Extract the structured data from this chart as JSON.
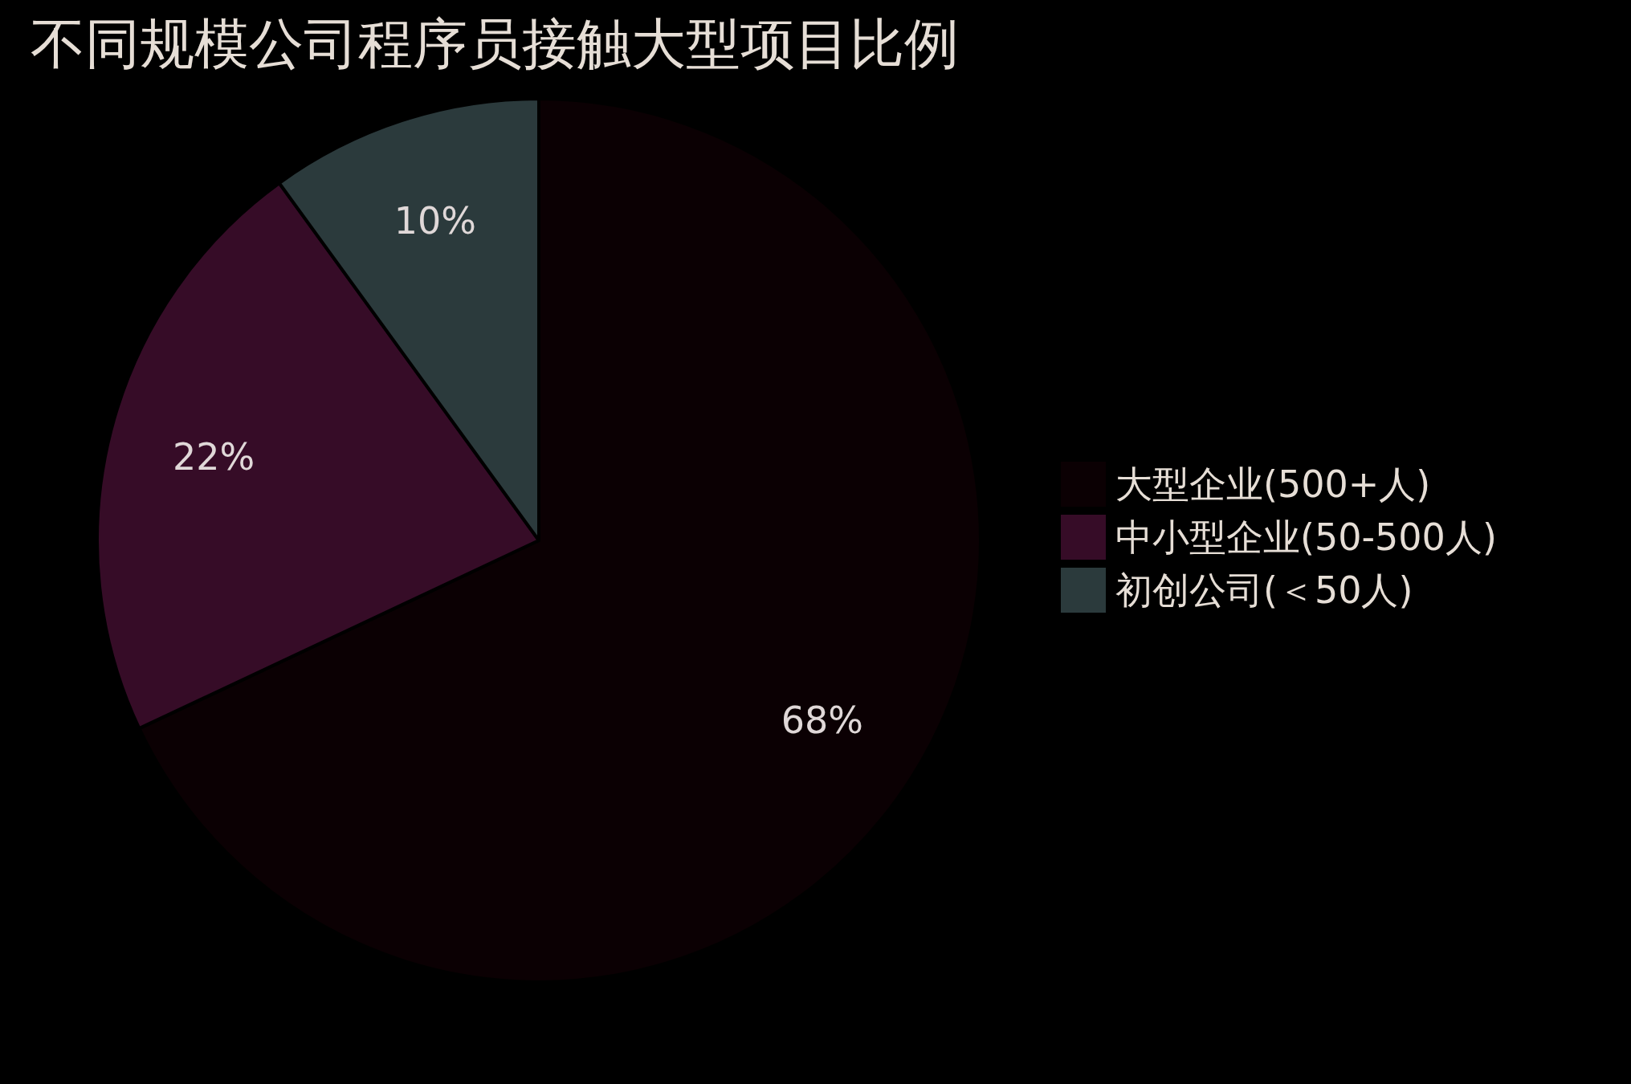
{
  "chart_data": {
    "type": "pie",
    "title": "不同规模公司程序员接触大型项目比例",
    "categories": [
      "大型企业(500+人)",
      "中小型企业(50-500人)",
      "初创公司(＜50人)"
    ],
    "values": [
      68,
      22,
      10
    ],
    "colors": [
      "#0b0003",
      "#360c27",
      "#2b3a3c"
    ],
    "value_labels": [
      "68%",
      "22%",
      "10%"
    ],
    "legend": "right"
  }
}
